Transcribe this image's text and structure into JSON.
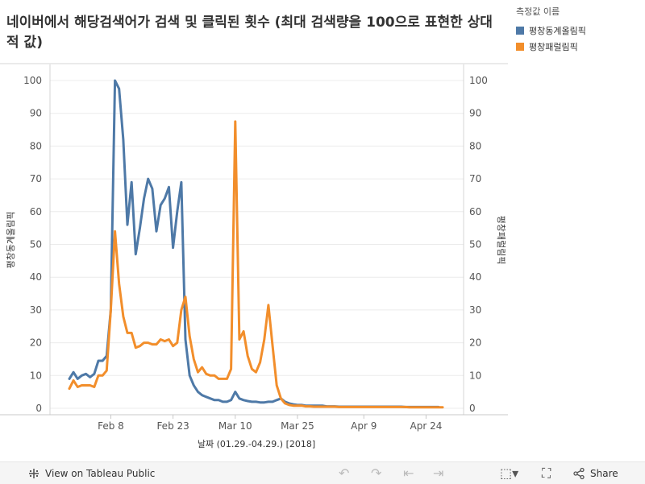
{
  "title": "네이버에서 해당검색어가 검색 및 클릭된 횟수 (최대 검색량을 100으로 표현한 상대적 값)",
  "legend": {
    "title": "측정값 이름",
    "items": [
      {
        "label": "평창동계올림픽",
        "color": "#4e79a7"
      },
      {
        "label": "평창패럴림픽",
        "color": "#f28e2b"
      }
    ]
  },
  "toolbar": {
    "view_label": "View on Tableau Public",
    "share_label": "Share"
  },
  "chart_data": {
    "type": "line",
    "xlabel": "날짜 (01.29.-04.29.) [2018]",
    "ylabel_left": "평창동계올림픽",
    "ylabel_right": "평창패럴림픽",
    "ylim": [
      0,
      100
    ],
    "yticks": [
      0,
      10,
      20,
      30,
      40,
      50,
      60,
      70,
      80,
      90,
      100
    ],
    "x_range_days": [
      0,
      90
    ],
    "x_ticks": [
      {
        "label": "Feb 8",
        "day": 10
      },
      {
        "label": "Feb 23",
        "day": 25
      },
      {
        "label": "Mar 10",
        "day": 40
      },
      {
        "label": "Mar 25",
        "day": 55
      },
      {
        "label": "Apr 9",
        "day": 71
      },
      {
        "label": "Apr 24",
        "day": 86
      }
    ],
    "series": [
      {
        "name": "평창동계올림픽",
        "color": "#4e79a7",
        "values": [
          9,
          11,
          9,
          10,
          10.5,
          9.5,
          10.5,
          14.5,
          14.5,
          16,
          30,
          100,
          97.5,
          82,
          56,
          69,
          47,
          55,
          64,
          70,
          67,
          54,
          62,
          64,
          67.5,
          49,
          60,
          69,
          21,
          10,
          7,
          5,
          4,
          3.5,
          3,
          2.5,
          2.5,
          2,
          2,
          2.5,
          5,
          3,
          2.5,
          2.2,
          2,
          2,
          1.8,
          1.8,
          2,
          2,
          2.5,
          3,
          2,
          1.5,
          1.2,
          1,
          1,
          0.8,
          0.8,
          0.8,
          0.8,
          0.8,
          0.6,
          0.6,
          0.6,
          0.5,
          0.5,
          0.5,
          0.5,
          0.5,
          0.5,
          0.5,
          0.5,
          0.5,
          0.5,
          0.5,
          0.5,
          0.5,
          0.5,
          0.5,
          0.5,
          0.4,
          0.4,
          0.4,
          0.4,
          0.4,
          0.4,
          0.4,
          0.4,
          0.4
        ]
      },
      {
        "name": "평창패럴림픽",
        "color": "#f28e2b",
        "values": [
          6,
          8.5,
          6.5,
          7,
          7,
          7,
          6.5,
          10,
          10,
          11.5,
          30,
          54,
          38,
          28,
          23,
          23,
          18.5,
          19,
          20,
          20,
          19.5,
          19.5,
          21,
          20.5,
          21,
          19,
          20,
          30,
          34,
          22,
          15,
          11,
          12.5,
          10.5,
          10,
          10,
          9,
          9,
          9,
          12,
          87.5,
          21,
          23.5,
          16,
          12,
          11,
          14,
          21,
          31.5,
          19,
          7,
          3,
          1.5,
          1,
          0.8,
          0.8,
          0.8,
          0.6,
          0.6,
          0.5,
          0.5,
          0.5,
          0.5,
          0.5,
          0.5,
          0.4,
          0.4,
          0.4,
          0.4,
          0.4,
          0.4,
          0.4,
          0.4,
          0.4,
          0.4,
          0.4,
          0.4,
          0.4,
          0.4,
          0.4,
          0.4,
          0.4,
          0.3,
          0.3,
          0.3,
          0.3,
          0.3,
          0.3,
          0.3,
          0.3,
          0.3
        ]
      }
    ]
  }
}
